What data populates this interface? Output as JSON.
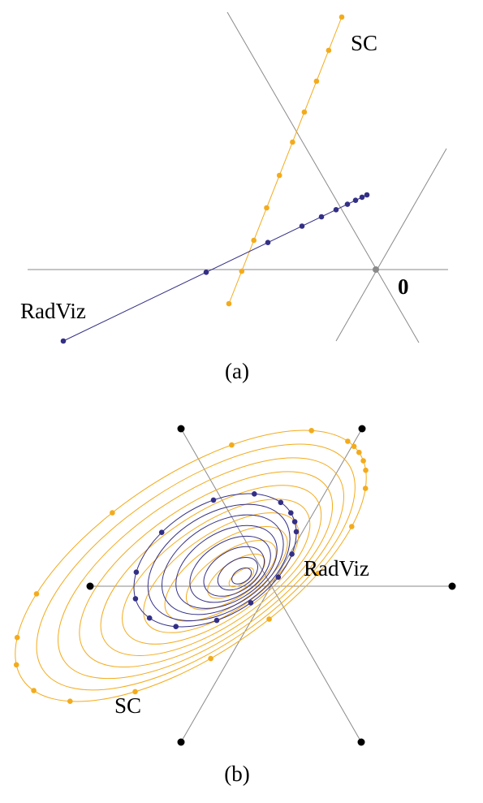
{
  "colors": {
    "axis": "#8a8a8a",
    "sc": "#f3ab1c",
    "radviz": "#332f86",
    "anchor": "#000000"
  },
  "panel_a": {
    "caption": "(a)",
    "sc_label": "SC",
    "radviz_label": "RadViz",
    "origin_label": "0"
  },
  "panel_b": {
    "caption": "(b)",
    "sc_label": "SC",
    "radviz_label": "RadViz"
  }
}
